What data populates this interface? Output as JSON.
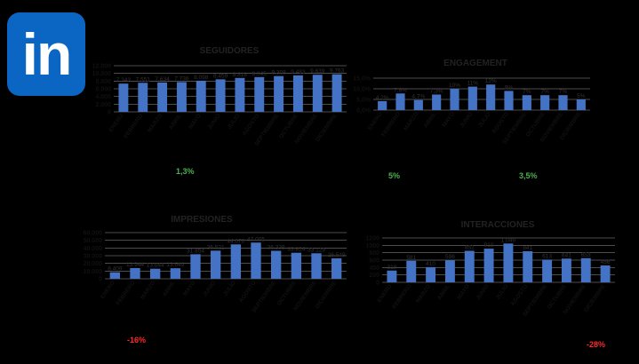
{
  "logo": {
    "text": "in",
    "color": "#0a66c2"
  },
  "colors": {
    "bar": "#4472c4",
    "positive": "#4caf50",
    "negative": "#ff2a2a"
  },
  "months": [
    "ENERO",
    "FEBRERO",
    "MARZO",
    "ABRIL",
    "MAYO",
    "JUNIO",
    "JULIO",
    "AGOSTO",
    "SEPTIEMBRE",
    "OCTUBRE",
    "NOVIEMBRE",
    "DICIEMBRE"
  ],
  "notes": {
    "seguidores": "1,3%",
    "engagement_a": "5%",
    "engagement_b": "3,5%",
    "impresiones": "-16%",
    "interacciones": "-28%"
  },
  "chart_data": [
    {
      "type": "bar",
      "title": "SEGUIDORES",
      "categories": [
        "ENERO",
        "FEBRERO",
        "MARZO",
        "ABRIL",
        "MAYO",
        "JUNIO",
        "JULIO",
        "AGOSTO",
        "SEPTIEMBRE",
        "OCTUBRE",
        "NOVIEMBRE",
        "DICIEMBRE"
      ],
      "values": [
        7343,
        7551,
        7634,
        7736,
        8098,
        8459,
        8818,
        9045,
        9308,
        9483,
        9639,
        9763
      ],
      "labels": [
        "7.343",
        "7.551",
        "7.634",
        "7.736",
        "8.098",
        "8.459",
        "8.818",
        "9.045",
        "9.308",
        "9.483",
        "9.639",
        "9.763"
      ],
      "ylim": [
        0,
        12000
      ],
      "yticks": [
        "0",
        "2.000",
        "4.000",
        "6.000",
        "8.000",
        "10.000",
        "12.000"
      ]
    },
    {
      "type": "bar",
      "title": "ENGAGEMENT",
      "categories": [
        "ENERO",
        "FEBRERO",
        "MARZO",
        "ABRIL",
        "MAYO",
        "JUNIO",
        "JULIO",
        "AGOSTO",
        "SEPTIEMBRE",
        "OCTUBRE",
        "NOVIEMBRE",
        "DICIEMBRE"
      ],
      "values": [
        4.2,
        7.8,
        4.7,
        7.3,
        10,
        11,
        12,
        9,
        7,
        7,
        7,
        5
      ],
      "labels": [
        "4,2%",
        "7,8%",
        "4,7%",
        "7,3%",
        "10%",
        "11%",
        "12%",
        "9%",
        "7%",
        "7%",
        "7%",
        "5%"
      ],
      "ylim": [
        0,
        15
      ],
      "yticks": [
        "0,0%",
        "5,0%",
        "10,0%",
        "15,0%"
      ]
    },
    {
      "type": "bar",
      "title": "IMPRESIONES",
      "categories": [
        "ENERO",
        "FEBRERO",
        "MARZO",
        "ABRIL",
        "MAYO",
        "JUNIO",
        "JULIO",
        "AGOSTO",
        "SEPTIEMBRE",
        "OCTUBRE",
        "NOVIEMBRE",
        "DICIEMBRE"
      ],
      "values": [
        8409,
        13944,
        13044,
        13649,
        31854,
        36521,
        44670,
        47005,
        36339,
        33814,
        33129,
        26549
      ],
      "labels": [
        "8.409",
        "13.944",
        "13.044",
        "13.649",
        "31.854",
        "36.521",
        "44.670",
        "47.005",
        "36.339",
        "33.814",
        "33.129",
        "26.549"
      ],
      "ylim": [
        0,
        60000
      ],
      "yticks": [
        "0",
        "10.000",
        "20.000",
        "30.000",
        "40.000",
        "50.000",
        "60.000"
      ]
    },
    {
      "type": "bar",
      "title": "INTERACCIONES",
      "categories": [
        "ENERO",
        "FEBRERO",
        "MARZO",
        "ABRIL",
        "MAYO",
        "JUNIO",
        "JULIO",
        "AGOSTO",
        "SEPTIEMBRE",
        "OCTUBRE",
        "NOVIEMBRE",
        "DICIEMBRE"
      ],
      "values": [
        318,
        581,
        410,
        596,
        852,
        910,
        1049,
        841,
        613,
        641,
        653,
        456
      ],
      "labels": [
        "318",
        "581",
        "410",
        "596",
        "852",
        "910",
        "1.049",
        "841",
        "613",
        "641",
        "653",
        "456"
      ],
      "ylim": [
        0,
        1200
      ],
      "yticks": [
        "0",
        "200",
        "400",
        "600",
        "800",
        "1000",
        "1200"
      ]
    }
  ]
}
